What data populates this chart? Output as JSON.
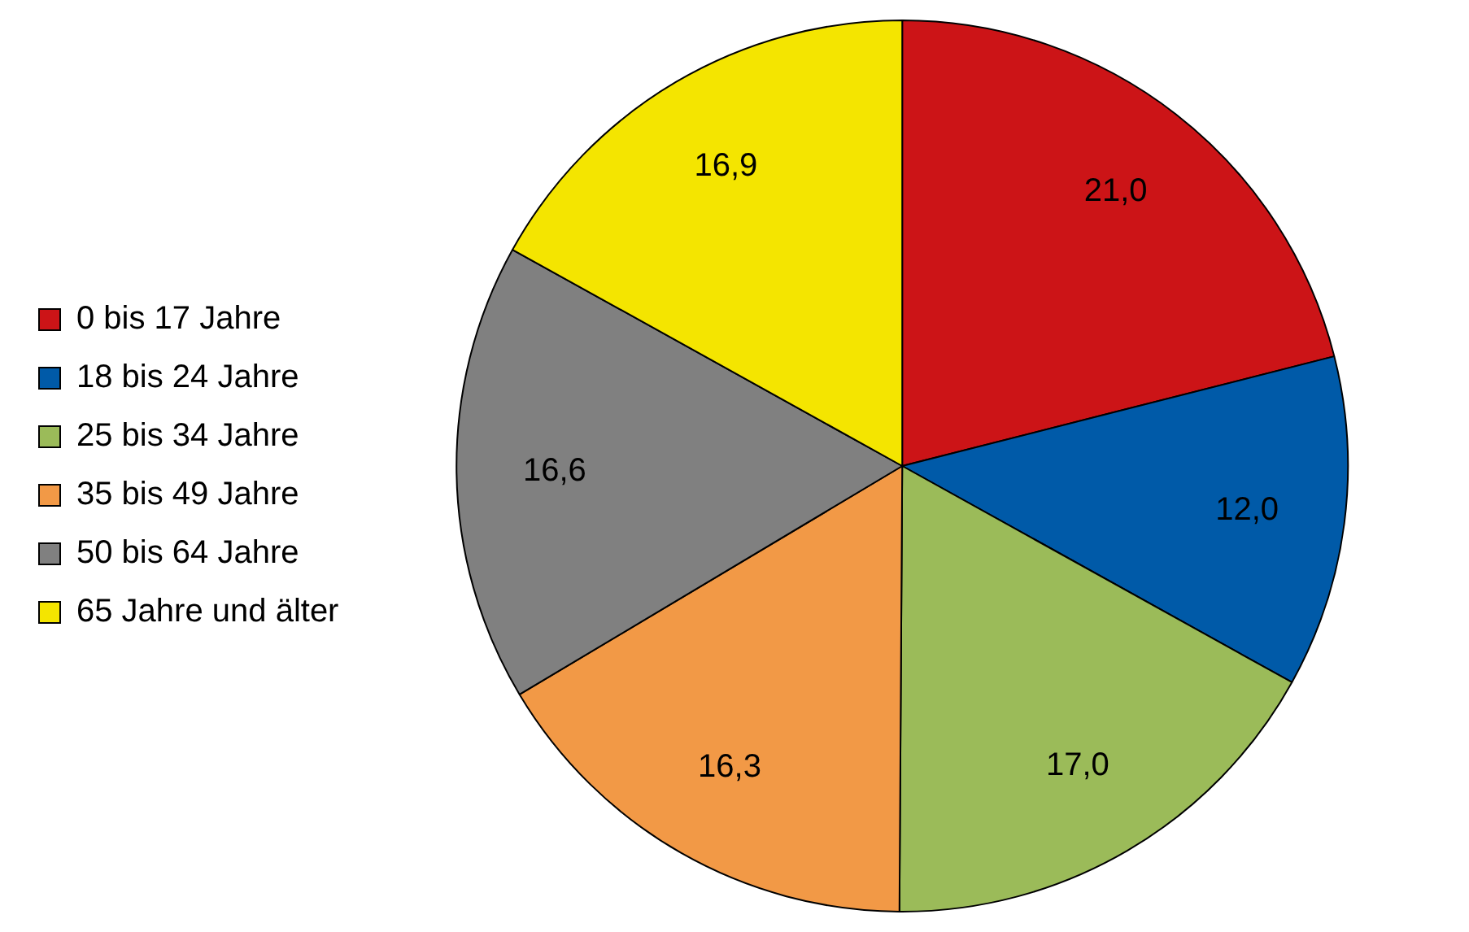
{
  "chart_data": {
    "type": "pie",
    "categories": [
      "0 bis 17 Jahre",
      "18 bis 24 Jahre",
      "25 bis 34 Jahre",
      "35 bis 49 Jahre",
      "50 bis 64 Jahre",
      "65 Jahre und älter"
    ],
    "values": [
      21.0,
      12.0,
      17.0,
      16.3,
      16.6,
      16.9
    ],
    "value_labels": [
      "21,0",
      "12,0",
      "17,0",
      "16,3",
      "16,6",
      "16,9"
    ],
    "colors": [
      "#cc1417",
      "#005aa8",
      "#9bbb59",
      "#f29946",
      "#808080",
      "#f4e500"
    ],
    "legend": "left"
  }
}
